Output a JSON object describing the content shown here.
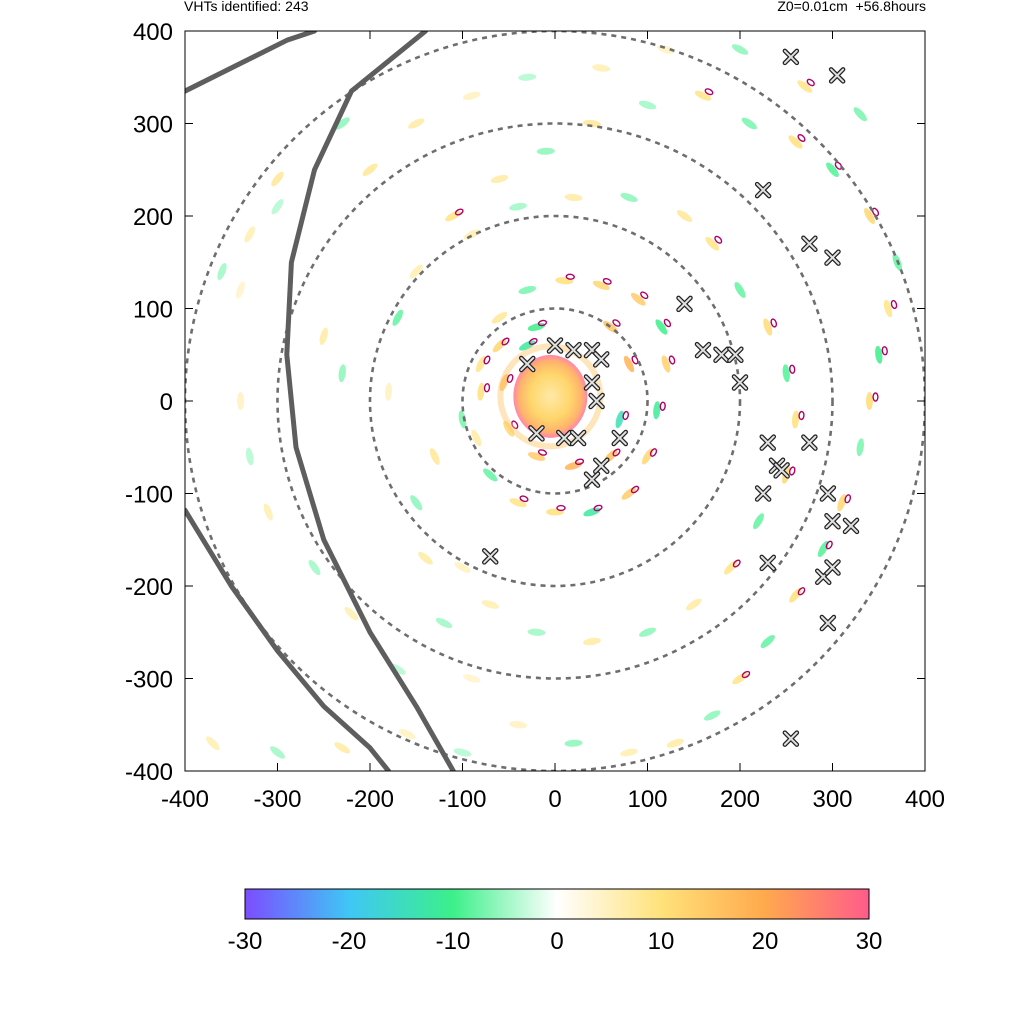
{
  "header": {
    "left_text": "VHTs identified: 243",
    "right_text": "Z0=0.01cm  +56.8hours"
  },
  "chart_data": {
    "type": "heatmap",
    "title": "",
    "xlabel": "",
    "ylabel": "",
    "xlim": [
      -400,
      400
    ],
    "ylim": [
      -400,
      400
    ],
    "x_ticks": [
      -400,
      -300,
      -200,
      -100,
      0,
      100,
      200,
      300,
      400
    ],
    "y_ticks": [
      -400,
      -300,
      -200,
      -100,
      0,
      100,
      200,
      300,
      400
    ],
    "x_tick_labels": [
      "-400",
      "-300",
      "-200",
      "-100",
      "0",
      "100",
      "200",
      "300",
      "400"
    ],
    "y_tick_labels": [
      "-400",
      "-300",
      "-200",
      "-100",
      "0",
      "100",
      "200",
      "300",
      "400"
    ],
    "range_rings_radius": [
      100,
      200,
      300,
      400
    ],
    "colorbar": {
      "min": -30,
      "max": 30,
      "ticks": [
        -30,
        -20,
        -10,
        0,
        10,
        20,
        30
      ],
      "tick_labels": [
        "-30",
        "-20",
        "-10",
        "0",
        "10",
        "20",
        "30"
      ],
      "colors": [
        "#7b4dff",
        "#3fc7f5",
        "#3cf08a",
        "#ffffff",
        "#ffe27a",
        "#ffa94d",
        "#ff5c8a"
      ]
    },
    "eye_core": {
      "center": [
        -5,
        5
      ],
      "radius": 40
    },
    "vht_count": 243,
    "vht_markers": [
      [
        -30,
        40
      ],
      [
        0,
        60
      ],
      [
        20,
        55
      ],
      [
        40,
        55
      ],
      [
        50,
        45
      ],
      [
        40,
        20
      ],
      [
        45,
        0
      ],
      [
        -20,
        -35
      ],
      [
        10,
        -40
      ],
      [
        25,
        -40
      ],
      [
        70,
        -40
      ],
      [
        40,
        -85
      ],
      [
        50,
        -70
      ],
      [
        140,
        105
      ],
      [
        160,
        55
      ],
      [
        180,
        50
      ],
      [
        195,
        50
      ],
      [
        200,
        20
      ],
      [
        230,
        -45
      ],
      [
        240,
        -70
      ],
      [
        245,
        -75
      ],
      [
        275,
        -45
      ],
      [
        225,
        -100
      ],
      [
        230,
        -175
      ],
      [
        295,
        -100
      ],
      [
        300,
        -130
      ],
      [
        320,
        -135
      ],
      [
        290,
        -190
      ],
      [
        300,
        -180
      ],
      [
        295,
        -240
      ],
      [
        255,
        -365
      ],
      [
        -70,
        -168
      ],
      [
        225,
        228
      ],
      [
        275,
        170
      ],
      [
        300,
        155
      ],
      [
        255,
        372
      ],
      [
        305,
        352
      ]
    ],
    "track_lines": [
      {
        "name": "track-1",
        "points": [
          [
            -400,
            335
          ],
          [
            -340,
            365
          ],
          [
            -290,
            390
          ],
          [
            -260,
            400
          ]
        ]
      },
      {
        "name": "track-2",
        "points": [
          [
            -140,
            400
          ],
          [
            -220,
            335
          ],
          [
            -260,
            250
          ],
          [
            -285,
            150
          ],
          [
            -290,
            50
          ],
          [
            -280,
            -50
          ],
          [
            -250,
            -150
          ],
          [
            -200,
            -250
          ],
          [
            -150,
            -330
          ],
          [
            -110,
            -400
          ]
        ]
      },
      {
        "name": "track-3",
        "points": [
          [
            -400,
            -118
          ],
          [
            -350,
            -200
          ],
          [
            -300,
            -270
          ],
          [
            -250,
            -330
          ],
          [
            -200,
            -375
          ],
          [
            -180,
            -400
          ]
        ]
      }
    ],
    "features": [
      [
        -300,
        240,
        8
      ],
      [
        -330,
        180,
        6
      ],
      [
        -340,
        120,
        4
      ],
      [
        -360,
        140,
        -5
      ],
      [
        -300,
        210,
        -4
      ],
      [
        -250,
        70,
        7
      ],
      [
        -230,
        30,
        -6
      ],
      [
        -180,
        10,
        5
      ],
      [
        -170,
        90,
        -8
      ],
      [
        -150,
        140,
        6
      ],
      [
        -110,
        200,
        9
      ],
      [
        -60,
        240,
        7
      ],
      [
        -10,
        270,
        -6
      ],
      [
        40,
        300,
        8
      ],
      [
        100,
        320,
        -5
      ],
      [
        160,
        330,
        9
      ],
      [
        210,
        300,
        -7
      ],
      [
        260,
        280,
        10
      ],
      [
        300,
        250,
        -9
      ],
      [
        340,
        200,
        12
      ],
      [
        370,
        150,
        -8
      ],
      [
        360,
        100,
        9
      ],
      [
        350,
        50,
        -10
      ],
      [
        340,
        0,
        11
      ],
      [
        330,
        -50,
        -7
      ],
      [
        310,
        -110,
        12
      ],
      [
        290,
        -160,
        -9
      ],
      [
        260,
        -210,
        10
      ],
      [
        230,
        -260,
        -8
      ],
      [
        200,
        -300,
        9
      ],
      [
        170,
        -340,
        -6
      ],
      [
        130,
        -370,
        7
      ],
      [
        80,
        -380,
        6
      ],
      [
        20,
        -370,
        -6
      ],
      [
        -40,
        -350,
        5
      ],
      [
        -90,
        -300,
        4
      ],
      [
        -120,
        -240,
        -5
      ],
      [
        -140,
        -170,
        7
      ],
      [
        -150,
        -110,
        -6
      ],
      [
        -130,
        -60,
        8
      ],
      [
        -100,
        -20,
        -7
      ],
      [
        -80,
        40,
        9
      ],
      [
        -60,
        90,
        8
      ],
      [
        -30,
        120,
        -7
      ],
      [
        10,
        130,
        10
      ],
      [
        50,
        125,
        12
      ],
      [
        90,
        110,
        14
      ],
      [
        115,
        80,
        -10
      ],
      [
        120,
        40,
        13
      ],
      [
        110,
        -10,
        -11
      ],
      [
        100,
        -60,
        12
      ],
      [
        80,
        -100,
        14
      ],
      [
        40,
        -120,
        -12
      ],
      [
        0,
        -120,
        10
      ],
      [
        -40,
        -110,
        9
      ],
      [
        -70,
        -80,
        -8
      ],
      [
        -85,
        -40,
        7
      ],
      [
        -80,
        10,
        10
      ],
      [
        -60,
        60,
        12
      ],
      [
        -20,
        80,
        -10
      ],
      [
        60,
        80,
        15
      ],
      [
        80,
        40,
        18
      ],
      [
        70,
        -20,
        -14
      ],
      [
        60,
        -60,
        16
      ],
      [
        20,
        -70,
        18
      ],
      [
        -20,
        -60,
        14
      ],
      [
        -50,
        -30,
        12
      ],
      [
        -55,
        20,
        16
      ],
      [
        -30,
        60,
        -12
      ],
      [
        170,
        170,
        9
      ],
      [
        200,
        120,
        -8
      ],
      [
        230,
        80,
        11
      ],
      [
        250,
        30,
        -9
      ],
      [
        260,
        -20,
        10
      ],
      [
        250,
        -80,
        12
      ],
      [
        220,
        -130,
        -8
      ],
      [
        190,
        -180,
        9
      ],
      [
        150,
        -220,
        7
      ],
      [
        100,
        -250,
        -6
      ],
      [
        40,
        -260,
        7
      ],
      [
        -20,
        -250,
        -5
      ],
      [
        -70,
        -220,
        6
      ],
      [
        -100,
        -180,
        5
      ],
      [
        140,
        200,
        8
      ],
      [
        80,
        220,
        -6
      ],
      [
        20,
        220,
        7
      ],
      [
        -40,
        210,
        -5
      ],
      [
        -90,
        180,
        6
      ],
      [
        -200,
        250,
        8
      ],
      [
        -230,
        300,
        -6
      ],
      [
        -150,
        300,
        7
      ],
      [
        -90,
        330,
        5
      ],
      [
        -30,
        350,
        -4
      ],
      [
        50,
        360,
        6
      ],
      [
        120,
        380,
        5
      ],
      [
        200,
        380,
        -6
      ],
      [
        270,
        340,
        9
      ],
      [
        330,
        310,
        -7
      ],
      [
        -370,
        -370,
        6
      ],
      [
        -300,
        -380,
        -5
      ],
      [
        -230,
        -375,
        7
      ],
      [
        -160,
        -360,
        5
      ],
      [
        -100,
        -380,
        -4
      ],
      [
        -340,
        0,
        5
      ],
      [
        -330,
        -60,
        -4
      ],
      [
        -310,
        -120,
        6
      ],
      [
        -260,
        -180,
        -5
      ],
      [
        -220,
        -230,
        6
      ],
      [
        -170,
        -290,
        -4
      ]
    ]
  }
}
